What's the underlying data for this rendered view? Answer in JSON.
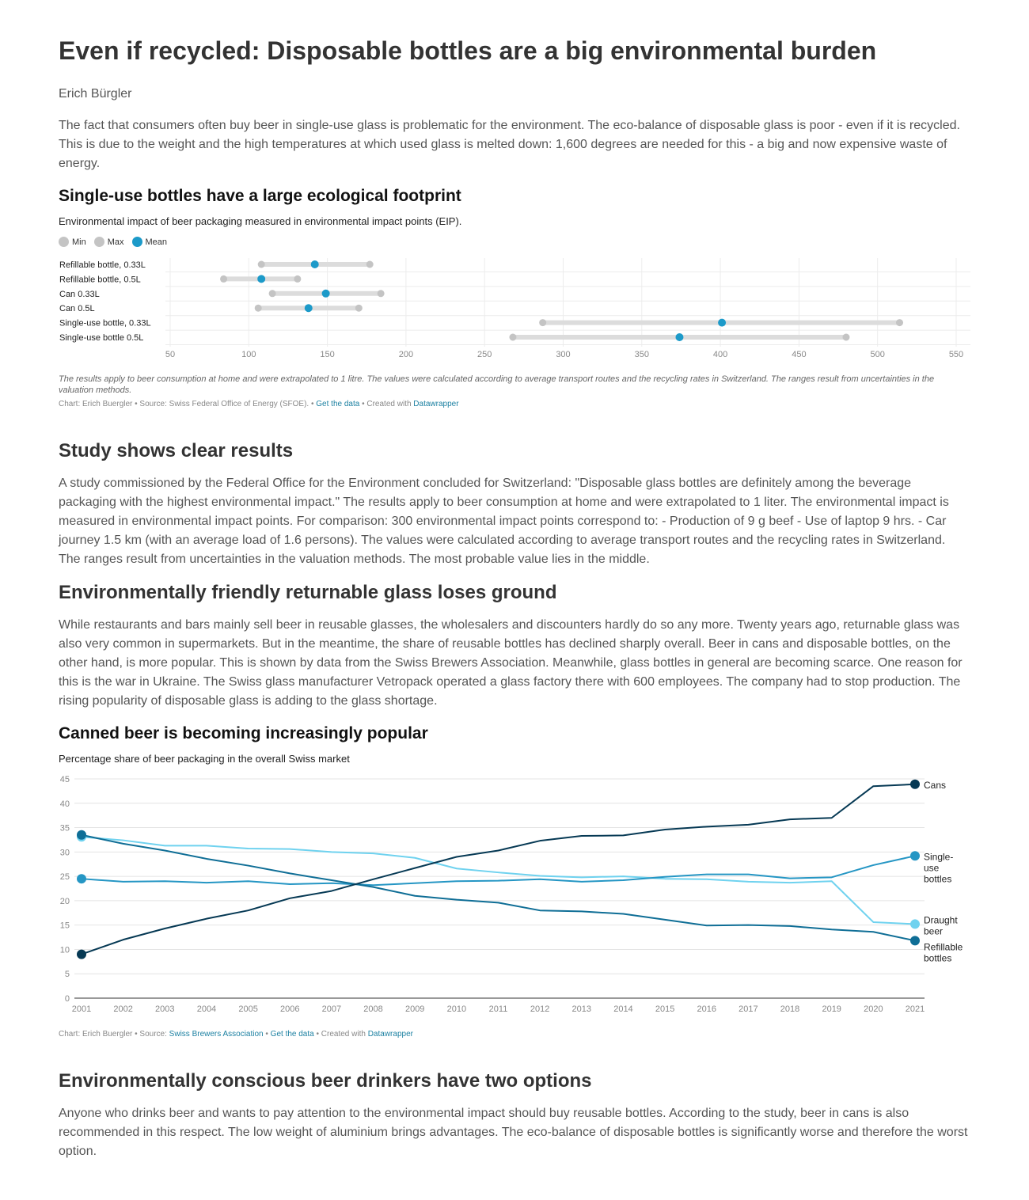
{
  "article": {
    "title": "Even if recycled: Disposable bottles are a big environmental burden",
    "author": "Erich Bürgler",
    "intro": "The fact that consumers often buy beer in single-use glass is problematic for the environment. The eco-balance of disposable glass is poor - even if it is recycled. This is due to the weight and the high temperatures at which used glass is melted down: 1,600 degrees are needed for this - a big and now expensive waste of energy.",
    "section_study_title": "Study shows clear results",
    "section_study_text": "A study commissioned by the Federal Office for the Environment concluded for Switzerland: \"Disposable glass bottles are definitely among the beverage packaging with the highest environmental impact.\" The results apply to beer consumption at home and were extrapolated to 1 liter. The environmental impact is measured in environmental impact points. For comparison: 300 environmental impact points correspond to: - Production of 9 g beef - Use of laptop 9 hrs. - Car journey 1.5 km (with an average load of 1.6 persons). The values were calculated according to average transport routes and the recycling rates in Switzerland. The ranges result from uncertainties in the valuation methods. The most probable value lies in the middle.",
    "section_return_title": "Environmentally friendly returnable glass loses ground",
    "section_return_text": "While restaurants and bars mainly sell beer in reusable glasses, the wholesalers and discounters hardly do so any more. Twenty years ago, returnable glass was also very common in supermarkets. But in the meantime, the share of reusable bottles has declined sharply overall. Beer in cans and disposable bottles, on the other hand, is more popular. This is shown by data from the Swiss Brewers Association. Meanwhile, glass bottles in general are becoming scarce. One reason for this is the war in Ukraine. The Swiss glass manufacturer Vetropack operated a glass factory there with 600 employees. The company had to stop production. The rising popularity of disposable glass is adding to the glass shortage.",
    "section_options_title": "Environmentally conscious beer drinkers have two options",
    "section_options_text": "Anyone who drinks beer and wants to pay attention to the environmental impact should buy reusable bottles. According to the study, beer in cans is also recommended in this respect. The low weight of aluminium brings advantages. The eco-balance of disposable bottles is significantly worse and therefore the worst option."
  },
  "chart1_meta": {
    "title": "Single-use bottles have a large ecological footprint",
    "description": "Environmental impact of beer packaging measured in environmental impact points (EIP).",
    "notes": "The results apply to beer consumption at home and were extrapolated to 1 litre. The values were calculated according to average transport routes and the recycling rates in Switzerland. The ranges result from uncertainties in the  valuation methods.",
    "footer_prefix": "Chart: Erich Buergler • Source: Swiss Federal Office of Energy (SFOE). • ",
    "footer_get_data": "Get the data",
    "footer_created": " • Created with ",
    "footer_tool": "Datawrapper"
  },
  "chart2_meta": {
    "title": "Canned beer is becoming increasingly popular",
    "description": "Percentage share of beer packaging in the overall Swiss market",
    "footer_prefix": "Chart: Erich Buergler • Source: ",
    "footer_source": "Swiss Brewers Association",
    "footer_sep": " • ",
    "footer_get_data": "Get the data",
    "footer_created": " • Created with ",
    "footer_tool": "Datawrapper"
  },
  "colors": {
    "range_bar": "#dcdcdc",
    "min_max_dot": "#c4c4c4",
    "mean_dot": "#1c9ac9",
    "cans": "#063954",
    "single_use": "#2596c4",
    "draught": "#6fd2ef",
    "refillable": "#0f6e96",
    "link": "#1d81a2"
  },
  "chart_data": [
    {
      "type": "range-dot",
      "legend": [
        "Min",
        "Max",
        "Mean"
      ],
      "categories": [
        "Refillable bottle, 0.33L",
        "Refillable bottle, 0.5L",
        "Can 0.33L",
        "Can 0.5L",
        "Single-use bottle, 0.33L",
        "Single-use bottle 0.5L"
      ],
      "min": [
        108,
        84,
        115,
        106,
        287,
        268
      ],
      "max": [
        177,
        131,
        184,
        170,
        514,
        480
      ],
      "mean": [
        142,
        108,
        149,
        138,
        401,
        374
      ],
      "xlim": [
        50,
        550
      ],
      "xticks": [
        50,
        100,
        150,
        200,
        250,
        300,
        350,
        400,
        450,
        500,
        550
      ],
      "grid": true
    },
    {
      "type": "line",
      "x": [
        2001,
        2002,
        2003,
        2004,
        2005,
        2006,
        2007,
        2008,
        2009,
        2010,
        2011,
        2012,
        2013,
        2014,
        2015,
        2016,
        2017,
        2018,
        2019,
        2020,
        2021
      ],
      "ylim": [
        0,
        45
      ],
      "yticks": [
        0,
        5,
        10,
        15,
        20,
        25,
        30,
        35,
        40,
        45
      ],
      "series": [
        {
          "name": "Cans",
          "label_lines": [
            "Cans"
          ],
          "values": [
            9,
            12,
            14.3,
            16.3,
            18,
            20.5,
            22,
            24.4,
            26.7,
            29,
            30.3,
            32.3,
            33.3,
            33.4,
            34.6,
            35.2,
            35.6,
            36.7,
            37,
            43.5,
            43.9
          ]
        },
        {
          "name": "Single-use bottles",
          "label_lines": [
            "Single-",
            "use",
            "bottles"
          ],
          "values": [
            24.5,
            23.9,
            24,
            23.7,
            24,
            23.4,
            23.6,
            23.2,
            23.6,
            24,
            24.1,
            24.4,
            23.9,
            24.2,
            24.9,
            25.4,
            25.4,
            24.6,
            24.8,
            27.3,
            29.2
          ]
        },
        {
          "name": "Draught beer",
          "label_lines": [
            "Draught",
            "beer"
          ],
          "values": [
            33.1,
            32.4,
            31.3,
            31.3,
            30.7,
            30.6,
            30,
            29.7,
            28.8,
            26.6,
            25.8,
            25.1,
            24.8,
            25,
            24.5,
            24.4,
            23.9,
            23.7,
            24,
            15.6,
            15.2
          ]
        },
        {
          "name": "Refillable bottles",
          "label_lines": [
            "Refillable",
            "bottles"
          ],
          "values": [
            33.5,
            31.7,
            30.3,
            28.6,
            27.2,
            25.6,
            24.2,
            22.8,
            21,
            20.2,
            19.6,
            18,
            17.8,
            17.3,
            16.1,
            14.9,
            15,
            14.8,
            14.1,
            13.6,
            11.8
          ]
        }
      ],
      "grid": true
    }
  ]
}
